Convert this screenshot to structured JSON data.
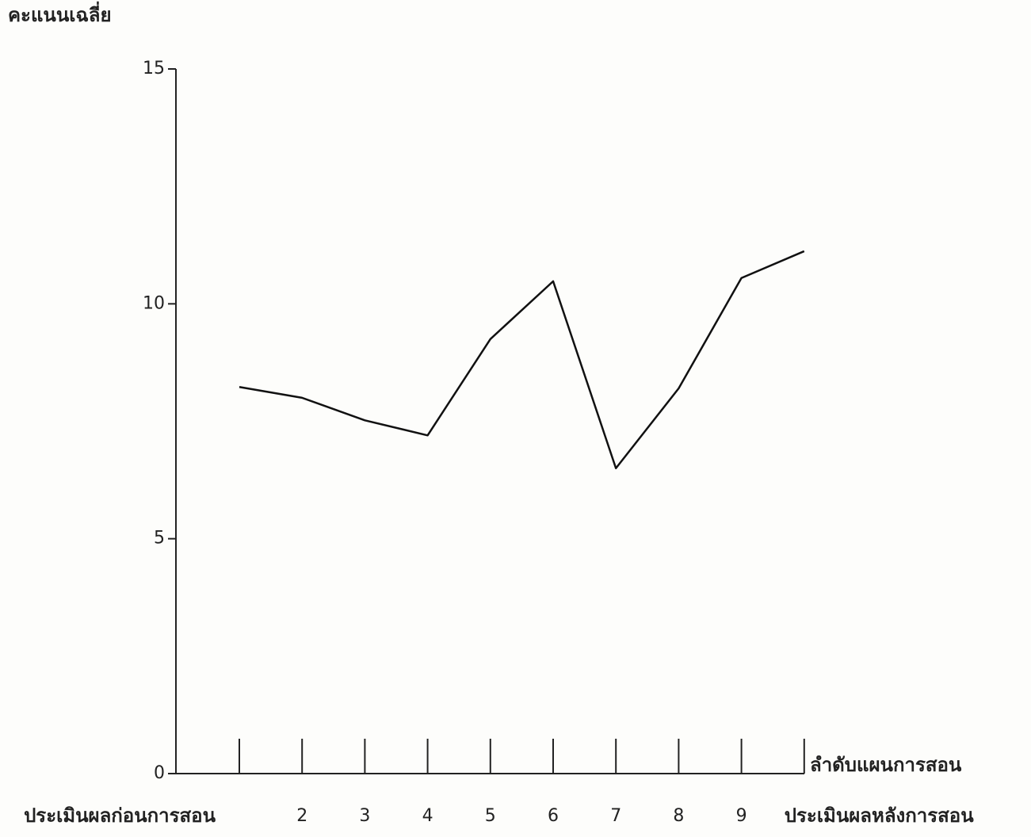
{
  "chart_data": {
    "type": "line",
    "y_label": "คะแนนเฉลี่ย",
    "x_label": "ลำดับแผนการสอน",
    "categories": [
      "ประเมินผลก่อนการสอน",
      "2",
      "3",
      "4",
      "5",
      "6",
      "7",
      "8",
      "9",
      "ประเมินผลหลังการสอน"
    ],
    "values": [
      8.23,
      8.0,
      7.52,
      7.2,
      9.25,
      10.48,
      6.5,
      8.2,
      10.55,
      11.12
    ],
    "color": "#111111",
    "ylim": [
      0,
      15
    ],
    "yticks": [
      0,
      5,
      10,
      15
    ],
    "grid": false
  }
}
